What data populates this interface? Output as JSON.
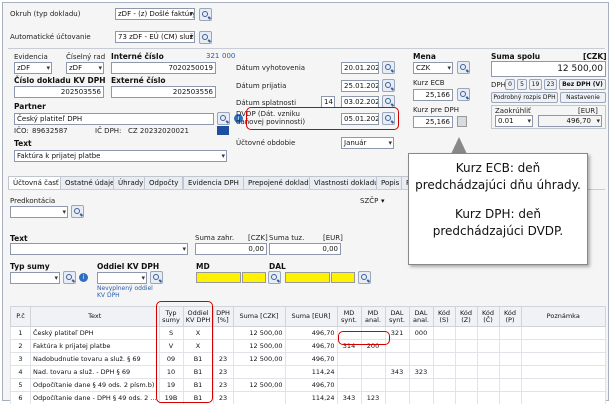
{
  "top": {
    "okruh_label": "Okruh (typ dokladu)",
    "okruh_value": "zDF - (z) Došlé faktúry",
    "auto_label": "Automatické účtovanie",
    "auto_value": "73 zDF - EÚ (CM) služba - § 69"
  },
  "doc": {
    "evidencia_label": "Evidencia",
    "evidencia_value": "zDF",
    "ciselny_rad_label": "Číselný rad",
    "ciselny_rad_value": "zDF",
    "interne_cislo_label": "Interné číslo",
    "interne_cislo_value": "7020250019",
    "num_321": "321",
    "num_000": "000",
    "cislo_dokladu_label": "Číslo dokladu KV DPH",
    "cislo_dokladu_value": "202503556",
    "externe_cislo_label": "Externé číslo",
    "externe_cislo_value": "202503556",
    "partner_label": "Partner",
    "partner_value": "Český platiteľ DPH",
    "ico_label": "IČO:",
    "ico_value": "89632587",
    "icdph_label": "IČ DPH:",
    "icdph_value": "CZ 20232020021",
    "text_label": "Text",
    "text_value": "Faktúra k prijatej platbe"
  },
  "dates": {
    "vyhotovenia_label": "Dátum vyhotovenia",
    "vyhotovenia_value": "20.01.2025",
    "prijatia_label": "Dátum prijatia",
    "prijatia_value": "25.01.2025",
    "splatnosti_label": "Dátum splatnosti",
    "splatnosti_days": "14",
    "splatnosti_value": "03.02.2025",
    "dvdp_label": "DVDP (Dát. vzniku daňovej povinnosti)",
    "dvdp_value": "05.01.2025",
    "obdobie_label": "Účtovné obdobie",
    "obdobie_value": "Január"
  },
  "currency": {
    "mena_label": "Mena",
    "mena_value": "CZK",
    "kurz_ecb_label": "Kurz ECB",
    "kurz_ecb_value": "25,166",
    "kurz_dph_label": "Kurz pre DPH",
    "kurz_dph_value": "25,166"
  },
  "sum": {
    "label": "Suma spolu",
    "unit": "[CZK]",
    "value": "12 500,00",
    "dph_label": "DPH",
    "rates": [
      "0",
      "5",
      "19",
      "23"
    ],
    "bez_dph": "Bez DPH (V)",
    "rozpis_btn": "Podrobný rozpis DPH",
    "nastavenie_btn": "Nastavenie",
    "zaokruhlit_label": "Zaokrúhliť",
    "eur_label": "[EUR]",
    "zaokruhlit_value": "0.01",
    "eur_value": "496,70"
  },
  "tabs": [
    "Účtovná časť",
    "Ostatné údaje",
    "Úhrady",
    "Odpočty",
    "Evidencia DPH",
    "Prepojené doklady",
    "Vlastnosti dokladu",
    "Popis",
    "Práv"
  ],
  "form": {
    "predkontacia_label": "Predkontácia",
    "szcp_label": "SZČP",
    "text_label": "Text",
    "suma_zahr_label": "Suma zahr.",
    "czk_label": "[CZK]",
    "suma_tuz_label": "Suma tuz.",
    "eur_label": "[EUR]",
    "suma_zahr_value": "0,00",
    "suma_tuz_value": "0,00",
    "typ_sumy_label": "Typ sumy",
    "oddiel_label": "Oddiel KV DPH",
    "oddiel_note": "Nevyplnený oddiel KV DPH",
    "md_label": "MD",
    "dal_label": "DAL"
  },
  "grid": {
    "headers": [
      "P.č",
      "Text",
      "Typ sumy",
      "Oddiel KV DPH",
      "DPH [%]",
      "Suma [CZK]",
      "Suma [EUR]",
      "MD synt.",
      "MD anal.",
      "DAL synt.",
      "DAL anal.",
      "Kód (S)",
      "Kód (Z)",
      "Kód (Č)",
      "Kód (P)",
      "Poznámka"
    ],
    "rows": [
      [
        "1",
        "Český platiteľ DPH",
        "S",
        "X",
        "",
        "12 500,00",
        "496,70",
        "",
        "",
        "321",
        "000",
        "",
        "",
        "",
        "",
        ""
      ],
      [
        "2",
        "Faktúra k prijatej platbe",
        "V",
        "X",
        "",
        "12 500,00",
        "496,70",
        "314",
        "200",
        "",
        "",
        "",
        "",
        "",
        "",
        ""
      ],
      [
        "3",
        "Nadobudnutie tovaru a služ. § 69",
        "09",
        "B1",
        "23",
        "12 500,00",
        "496,70",
        "",
        "",
        "",
        "",
        "",
        "",
        "",
        "",
        ""
      ],
      [
        "4",
        "Nad. tovaru a služ. - DPH § 69",
        "10",
        "B1",
        "23",
        "",
        "114,24",
        "",
        "",
        "343",
        "323",
        "",
        "",
        "",
        "",
        ""
      ],
      [
        "5",
        "Odpočítanie dane § 49 ods. 2 písm.b)",
        "19",
        "B1",
        "23",
        "12 500,00",
        "496,70",
        "",
        "",
        "",
        "",
        "",
        "",
        "",
        "",
        ""
      ],
      [
        "6",
        "Odpočítanie dane - DPH § 49 ods. 2 ...",
        "19B",
        "B1",
        "23",
        "",
        "114,24",
        "343",
        "123",
        "",
        "",
        "",
        "",
        "",
        "",
        ""
      ]
    ]
  },
  "callout": {
    "line1": "Kurz ECB: deň predchádzajúci dňu úhrady.",
    "line2": "Kurz DPH: deň predchádzajúci DVDP."
  },
  "colors": {
    "highlight": "#d10000",
    "yellow": "#fff200"
  }
}
